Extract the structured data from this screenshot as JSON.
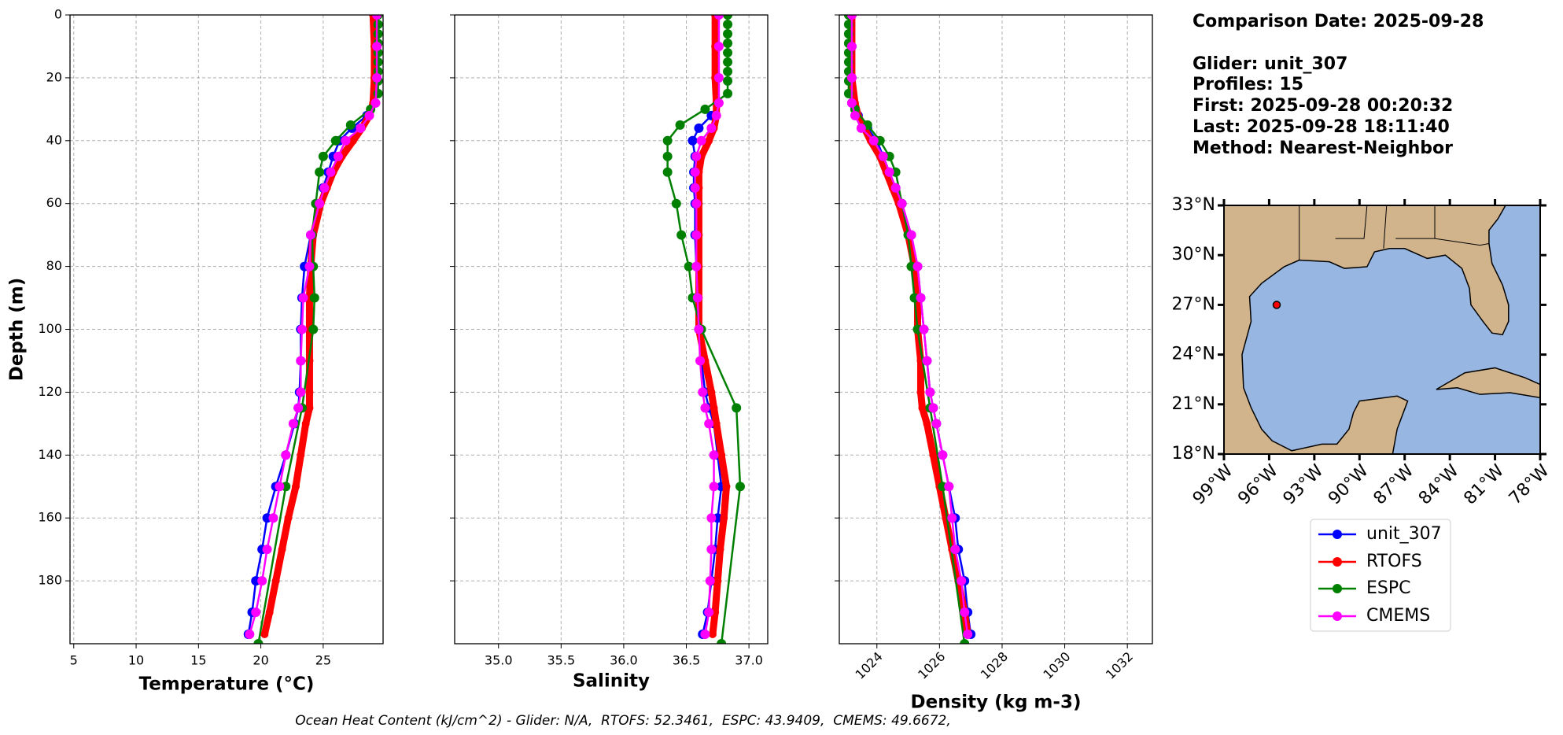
{
  "chart_data": [
    {
      "type": "line",
      "xlabel": "Temperature (°C)",
      "ylabel": "Depth (m)",
      "xlim": [
        4.7,
        29.8
      ],
      "xticks": [
        5,
        10,
        15,
        20,
        25
      ],
      "ylim": [
        200,
        0
      ],
      "yticks": [
        0,
        20,
        40,
        60,
        80,
        100,
        120,
        140,
        160,
        180
      ],
      "grid": true,
      "series": [
        {
          "name": "unit_307",
          "color": "#0000ff",
          "depth": [
            0,
            10,
            20,
            28,
            32,
            36,
            40,
            45,
            50,
            55,
            60,
            70,
            80,
            90,
            100,
            110,
            120,
            125,
            130,
            140,
            150,
            160,
            170,
            180,
            190,
            197
          ],
          "values": [
            29.2,
            29.2,
            29.2,
            29.1,
            28.5,
            27.3,
            26.3,
            25.8,
            25.4,
            25.0,
            24.7,
            24.0,
            23.5,
            23.3,
            23.2,
            23.2,
            23.1,
            23.0,
            22.7,
            22.0,
            21.2,
            20.5,
            20.1,
            19.6,
            19.3,
            19.0
          ]
        },
        {
          "name": "RTOFS",
          "color": "#ff0000",
          "depth": [
            0,
            10,
            20,
            28,
            32,
            36,
            40,
            45,
            50,
            55,
            60,
            70,
            80,
            90,
            100,
            110,
            120,
            125,
            130,
            140,
            150,
            160,
            170,
            180,
            190,
            197
          ],
          "values": [
            29.0,
            29.1,
            29.1,
            29.0,
            28.7,
            28.1,
            27.4,
            26.5,
            25.8,
            25.3,
            24.8,
            24.2,
            24.0,
            23.9,
            23.9,
            23.9,
            23.9,
            23.9,
            23.6,
            23.2,
            22.8,
            22.2,
            21.7,
            21.2,
            20.7,
            20.3
          ]
        },
        {
          "name": "ESPC",
          "color": "#008000",
          "depth": [
            0,
            3,
            6,
            9,
            12,
            15,
            18,
            21,
            25,
            30,
            35,
            40,
            45,
            50,
            60,
            70,
            80,
            90,
            100,
            125,
            150,
            200
          ],
          "values": [
            29.4,
            29.4,
            29.4,
            29.4,
            29.4,
            29.4,
            29.4,
            29.4,
            29.4,
            28.8,
            27.2,
            26.0,
            25.0,
            24.7,
            24.4,
            24.1,
            24.2,
            24.3,
            24.2,
            23.3,
            22.0,
            19.8
          ]
        },
        {
          "name": "CMEMS",
          "color": "#ff00ff",
          "depth": [
            0,
            10,
            20,
            28,
            32,
            36,
            40,
            45,
            50,
            55,
            60,
            70,
            80,
            90,
            100,
            110,
            120,
            125,
            130,
            140,
            150,
            160,
            170,
            180,
            190,
            197
          ],
          "values": [
            29.3,
            29.3,
            29.3,
            29.2,
            28.7,
            28.0,
            26.8,
            26.2,
            25.6,
            25.1,
            24.7,
            24.0,
            23.9,
            23.4,
            23.3,
            23.2,
            23.2,
            23.0,
            22.6,
            22.0,
            21.5,
            21.0,
            20.5,
            20.1,
            19.6,
            19.1
          ]
        }
      ]
    },
    {
      "type": "line",
      "xlabel": "Salinity",
      "xlim": [
        34.65,
        37.15
      ],
      "xticks": [
        {
          "value": 35,
          "label": "35.0"
        },
        35.5,
        {
          "value": 36,
          "label": "36.0"
        },
        36.5,
        {
          "value": 37,
          "label": "37.0"
        }
      ],
      "ylim": [
        200,
        0
      ],
      "yticks": [
        0,
        20,
        40,
        60,
        80,
        100,
        120,
        140,
        160,
        180
      ],
      "grid": true,
      "series": [
        {
          "name": "unit_307",
          "color": "#0000ff",
          "depth": [
            0,
            10,
            20,
            28,
            32,
            36,
            40,
            45,
            50,
            55,
            60,
            70,
            80,
            90,
            100,
            110,
            120,
            125,
            130,
            140,
            150,
            160,
            170,
            180,
            190,
            197
          ],
          "values": [
            36.75,
            36.75,
            36.75,
            36.75,
            36.7,
            36.6,
            36.55,
            36.57,
            36.56,
            36.56,
            36.57,
            36.57,
            36.58,
            36.58,
            36.6,
            36.62,
            36.65,
            36.68,
            36.72,
            36.75,
            36.78,
            36.75,
            36.73,
            36.7,
            36.67,
            36.63
          ]
        },
        {
          "name": "RTOFS",
          "color": "#ff0000",
          "depth": [
            0,
            10,
            20,
            28,
            32,
            36,
            40,
            45,
            50,
            55,
            60,
            70,
            80,
            90,
            100,
            110,
            120,
            125,
            130,
            140,
            150,
            160,
            170,
            180,
            190,
            197
          ],
          "values": [
            36.73,
            36.73,
            36.73,
            36.74,
            36.74,
            36.72,
            36.68,
            36.62,
            36.6,
            36.6,
            36.6,
            36.6,
            36.6,
            36.6,
            36.6,
            36.65,
            36.7,
            36.72,
            36.74,
            36.78,
            36.82,
            36.8,
            36.77,
            36.75,
            36.73,
            36.71
          ]
        },
        {
          "name": "ESPC",
          "color": "#008000",
          "depth": [
            0,
            3,
            6,
            9,
            12,
            15,
            18,
            21,
            25,
            30,
            35,
            40,
            45,
            50,
            60,
            70,
            80,
            90,
            100,
            125,
            150,
            200
          ],
          "values": [
            36.83,
            36.83,
            36.83,
            36.83,
            36.83,
            36.83,
            36.83,
            36.83,
            36.83,
            36.65,
            36.45,
            36.35,
            36.35,
            36.35,
            36.42,
            36.46,
            36.52,
            36.55,
            36.62,
            36.9,
            36.93,
            36.78
          ]
        },
        {
          "name": "CMEMS",
          "color": "#ff00ff",
          "depth": [
            0,
            10,
            20,
            28,
            32,
            36,
            40,
            45,
            50,
            55,
            60,
            70,
            80,
            90,
            100,
            110,
            120,
            125,
            130,
            140,
            150,
            160,
            170,
            180,
            190,
            197
          ],
          "values": [
            36.76,
            36.76,
            36.76,
            36.76,
            36.74,
            36.7,
            36.62,
            36.58,
            36.57,
            36.57,
            36.58,
            36.58,
            36.58,
            36.59,
            36.6,
            36.61,
            36.63,
            36.65,
            36.68,
            36.72,
            36.72,
            36.7,
            36.7,
            36.69,
            36.68,
            36.65
          ]
        }
      ]
    },
    {
      "type": "line",
      "xlabel": "Density (kg m-3)",
      "xlim": [
        1022.8,
        1032.8
      ],
      "xticks": [
        1024,
        1026,
        1028,
        1030,
        1032
      ],
      "ylim": [
        200,
        0
      ],
      "yticks": [
        0,
        20,
        40,
        60,
        80,
        100,
        120,
        140,
        160,
        180
      ],
      "grid": true,
      "series": [
        {
          "name": "unit_307",
          "color": "#0000ff",
          "depth": [
            0,
            10,
            20,
            28,
            32,
            36,
            40,
            45,
            50,
            55,
            60,
            70,
            80,
            90,
            100,
            110,
            120,
            125,
            130,
            140,
            150,
            160,
            170,
            180,
            190,
            197
          ],
          "values": [
            1023.2,
            1023.2,
            1023.2,
            1023.2,
            1023.4,
            1023.7,
            1024.0,
            1024.2,
            1024.4,
            1024.6,
            1024.8,
            1025.1,
            1025.3,
            1025.4,
            1025.5,
            1025.6,
            1025.7,
            1025.8,
            1025.9,
            1026.1,
            1026.3,
            1026.5,
            1026.6,
            1026.8,
            1026.9,
            1027.0
          ]
        },
        {
          "name": "RTOFS",
          "color": "#ff0000",
          "depth": [
            0,
            10,
            20,
            28,
            32,
            36,
            40,
            45,
            50,
            55,
            60,
            70,
            80,
            90,
            100,
            110,
            120,
            125,
            130,
            140,
            150,
            160,
            170,
            180,
            190,
            197
          ],
          "values": [
            1023.2,
            1023.2,
            1023.2,
            1023.3,
            1023.4,
            1023.6,
            1023.8,
            1024.1,
            1024.3,
            1024.5,
            1024.7,
            1025.0,
            1025.2,
            1025.3,
            1025.3,
            1025.4,
            1025.4,
            1025.45,
            1025.6,
            1025.8,
            1026.0,
            1026.2,
            1026.4,
            1026.6,
            1026.8,
            1026.9
          ]
        },
        {
          "name": "ESPC",
          "color": "#008000",
          "depth": [
            0,
            3,
            6,
            9,
            12,
            15,
            18,
            21,
            25,
            30,
            35,
            40,
            45,
            50,
            60,
            70,
            80,
            90,
            100,
            125,
            150,
            200
          ],
          "values": [
            1023.1,
            1023.1,
            1023.1,
            1023.1,
            1023.1,
            1023.1,
            1023.1,
            1023.1,
            1023.1,
            1023.3,
            1023.7,
            1024.1,
            1024.4,
            1024.6,
            1024.8,
            1025.0,
            1025.1,
            1025.2,
            1025.3,
            1025.7,
            1026.1,
            1026.8
          ]
        },
        {
          "name": "CMEMS",
          "color": "#ff00ff",
          "depth": [
            0,
            10,
            20,
            28,
            32,
            36,
            40,
            45,
            50,
            55,
            60,
            70,
            80,
            90,
            100,
            110,
            120,
            125,
            130,
            140,
            150,
            160,
            170,
            180,
            190,
            197
          ],
          "values": [
            1023.2,
            1023.2,
            1023.2,
            1023.2,
            1023.3,
            1023.5,
            1023.9,
            1024.2,
            1024.4,
            1024.6,
            1024.8,
            1025.1,
            1025.3,
            1025.4,
            1025.5,
            1025.6,
            1025.7,
            1025.8,
            1025.9,
            1026.1,
            1026.3,
            1026.4,
            1026.5,
            1026.7,
            1026.8,
            1026.9
          ]
        }
      ]
    }
  ],
  "info": {
    "comparison": "Comparison Date: 2025-09-28",
    "glider": "Glider: unit_307",
    "profiles": "Profiles: 15",
    "first": "First: 2025-09-28 00:20:32",
    "last": "Last: 2025-09-28 18:11:40",
    "method": "Method: Nearest-Neighbor"
  },
  "map": {
    "lonlim": [
      -99,
      -78
    ],
    "latlim": [
      18,
      33
    ],
    "lat_ticks": [
      {
        "value": 33,
        "label": "33°N"
      },
      {
        "value": 30,
        "label": "30°N"
      },
      {
        "value": 27,
        "label": "27°N"
      },
      {
        "value": 24,
        "label": "24°N"
      },
      {
        "value": 21,
        "label": "21°N"
      },
      {
        "value": 18,
        "label": "18°N"
      }
    ],
    "lon_ticks": [
      {
        "value": -99,
        "label": "99°W"
      },
      {
        "value": -96,
        "label": "96°W"
      },
      {
        "value": -93,
        "label": "93°W"
      },
      {
        "value": -90,
        "label": "90°W"
      },
      {
        "value": -87,
        "label": "87°W"
      },
      {
        "value": -84,
        "label": "84°W"
      },
      {
        "value": -81,
        "label": "81°W"
      },
      {
        "value": -78,
        "label": "78°W"
      }
    ],
    "marker": {
      "lon": -95.5,
      "lat": 27.0,
      "color": "#ff0000"
    }
  },
  "footer": "Ocean Heat Content (kJ/cm^2) - Glider: N/A,  RTOFS: 52.3461,  ESPC: 43.9409,  CMEMS: 49.6672,"
}
